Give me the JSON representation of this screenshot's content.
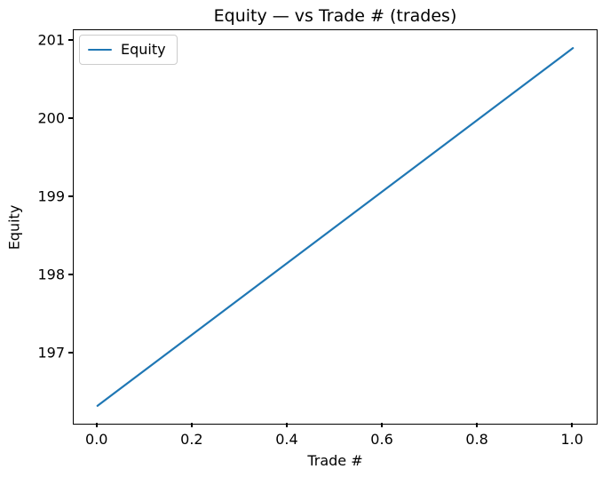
{
  "figure": {
    "background": "#ffffff"
  },
  "chart_data": {
    "type": "line",
    "title": "Equity — vs Trade # (trades)",
    "xlabel": "Trade #",
    "ylabel": "Equity",
    "series": [
      {
        "name": "Equity",
        "color": "#1f77b4",
        "x": [
          0.0,
          1.0
        ],
        "y": [
          196.33,
          200.91
        ]
      }
    ],
    "xticks": [
      0.0,
      0.2,
      0.4,
      0.6,
      0.8,
      1.0
    ],
    "xtick_labels": [
      "0.0",
      "0.2",
      "0.4",
      "0.6",
      "0.8",
      "1.0"
    ],
    "yticks": [
      197,
      198,
      199,
      200,
      201
    ],
    "ytick_labels": [
      "197",
      "198",
      "199",
      "200",
      "201"
    ],
    "xlim": [
      -0.05,
      1.05
    ],
    "ylim": [
      196.101,
      201.139
    ],
    "grid": false,
    "legend_position": "upper-left",
    "legend_entries": [
      "Equity"
    ],
    "line_width": 2.2,
    "axis_color": "#000000",
    "text_color": "#000000"
  }
}
